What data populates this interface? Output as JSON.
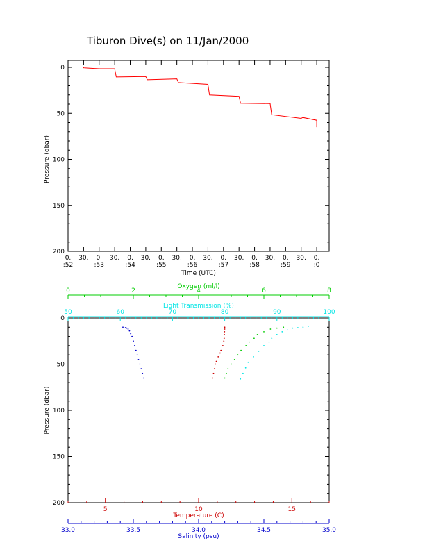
{
  "page_title": "Tiburon Dive(s) on 11/Jan/2000",
  "chart_data": [
    {
      "type": "line",
      "xlabel": "Time (UTC)",
      "ylabel": "Pressure (dbar)",
      "x_unit": "minute",
      "xlim": [
        52,
        60.4
      ],
      "ylim": [
        200,
        0
      ],
      "yticks": [
        0,
        50,
        100,
        150,
        200
      ],
      "xticks": [
        {
          "value": 52,
          "line1": "0.",
          "line2": ":52"
        },
        {
          "value": 52.5,
          "line1": "30.",
          "line2": ""
        },
        {
          "value": 53,
          "line1": "0.",
          "line2": ":53"
        },
        {
          "value": 53.5,
          "line1": "30.",
          "line2": ""
        },
        {
          "value": 54,
          "line1": "0.",
          "line2": ":54"
        },
        {
          "value": 54.5,
          "line1": "30.",
          "line2": ""
        },
        {
          "value": 55,
          "line1": "0.",
          "line2": ":55"
        },
        {
          "value": 55.5,
          "line1": "30.",
          "line2": ""
        },
        {
          "value": 56,
          "line1": "0.",
          "line2": ":56"
        },
        {
          "value": 56.5,
          "line1": "30.",
          "line2": ""
        },
        {
          "value": 57,
          "line1": "0.",
          "line2": ":57"
        },
        {
          "value": 57.5,
          "line1": "30.",
          "line2": ""
        },
        {
          "value": 58,
          "line1": "0.",
          "line2": ":58"
        },
        {
          "value": 58.5,
          "line1": "30.",
          "line2": ""
        },
        {
          "value": 59,
          "line1": "0.",
          "line2": ":59"
        },
        {
          "value": 59.5,
          "line1": "30.",
          "line2": ""
        },
        {
          "value": 60,
          "line1": "0.",
          "line2": ":0"
        }
      ],
      "series": [
        {
          "color": "#ff0000",
          "x": [
            52.5,
            52.5,
            53.0,
            53.5,
            53.55,
            54.5,
            54.55,
            55.5,
            55.55,
            56.5,
            56.55,
            57.5,
            57.55,
            58.5,
            58.55,
            59.5,
            59.55,
            60.0,
            60.0
          ],
          "y": [
            0,
            0.5,
            1.5,
            1.5,
            10.5,
            10.0,
            13.5,
            12.5,
            16.5,
            18.5,
            30.0,
            31.5,
            39.0,
            39.5,
            51.5,
            55.5,
            54.5,
            57.5,
            65.0
          ]
        }
      ]
    },
    {
      "type": "scatter",
      "ylabel": "Pressure (dbar)",
      "ylim": [
        200,
        0
      ],
      "yticks": [
        0,
        50,
        100,
        150,
        200
      ],
      "axes": {
        "oxygen": {
          "label": "Oxygen (ml/l)",
          "color": "#00cc00",
          "range": [
            0,
            8
          ],
          "ticks": [
            0,
            2,
            4,
            6,
            8
          ]
        },
        "light": {
          "label": "Light Transmission (%)",
          "color": "#00e5e5",
          "range": [
            50,
            100
          ],
          "ticks": [
            50,
            60,
            70,
            80,
            90,
            100
          ]
        },
        "temperature": {
          "label": "Temperature (C)",
          "color": "#cc0000",
          "range": [
            3,
            17
          ],
          "ticks": [
            5,
            10,
            15
          ]
        },
        "salinity": {
          "label": "Salinity (psu)",
          "color": "#0000cc",
          "range": [
            33.0,
            35.0
          ],
          "ticks": [
            "33.0",
            "33.5",
            "34.0",
            "34.5",
            "35.0"
          ]
        }
      },
      "series": [
        {
          "axis": "salinity",
          "color": "#0000cc",
          "points": [
            [
              33.42,
              10
            ],
            [
              33.44,
              10.5
            ],
            [
              33.45,
              11
            ],
            [
              33.46,
              12
            ],
            [
              33.47,
              14
            ],
            [
              33.48,
              17
            ],
            [
              33.49,
              20
            ],
            [
              33.5,
              25
            ],
            [
              33.51,
              30
            ],
            [
              33.52,
              35
            ],
            [
              33.53,
              40
            ],
            [
              33.54,
              45
            ],
            [
              33.55,
              50
            ],
            [
              33.56,
              55
            ],
            [
              33.57,
              60
            ],
            [
              33.58,
              65
            ]
          ]
        },
        {
          "axis": "temperature",
          "color": "#cc0000",
          "points": [
            [
              11.4,
              10
            ],
            [
              11.4,
              12
            ],
            [
              11.39,
              15
            ],
            [
              11.38,
              18
            ],
            [
              11.37,
              22
            ],
            [
              11.35,
              25
            ],
            [
              11.3,
              30
            ],
            [
              11.2,
              35
            ],
            [
              11.15,
              38
            ],
            [
              11.05,
              42
            ],
            [
              10.95,
              47
            ],
            [
              10.9,
              50
            ],
            [
              10.85,
              55
            ],
            [
              10.8,
              60
            ],
            [
              10.75,
              65
            ]
          ]
        },
        {
          "axis": "light",
          "color": "#00e5e5",
          "points": [
            [
              96,
              9
            ],
            [
              95,
              10
            ],
            [
              94,
              10.5
            ],
            [
              93,
              11
            ],
            [
              92,
              13
            ],
            [
              91,
              15
            ],
            [
              90,
              18
            ],
            [
              89,
              22
            ],
            [
              88.5,
              26
            ],
            [
              87.5,
              30
            ],
            [
              86.5,
              36
            ],
            [
              85.5,
              42
            ],
            [
              84.5,
              48
            ],
            [
              84,
              54
            ],
            [
              83.5,
              60
            ],
            [
              83,
              66
            ]
          ]
        },
        {
          "axis": "oxygen",
          "color": "#00cc00",
          "points": [
            [
              6.6,
              10
            ],
            [
              6.4,
              11
            ],
            [
              6.2,
              12
            ],
            [
              6.0,
              15
            ],
            [
              5.8,
              18
            ],
            [
              5.7,
              22
            ],
            [
              5.55,
              26
            ],
            [
              5.45,
              30
            ],
            [
              5.3,
              35
            ],
            [
              5.2,
              40
            ],
            [
              5.1,
              45
            ],
            [
              5.0,
              50
            ],
            [
              4.9,
              55
            ],
            [
              4.85,
              60
            ],
            [
              4.8,
              65
            ]
          ]
        }
      ]
    }
  ]
}
